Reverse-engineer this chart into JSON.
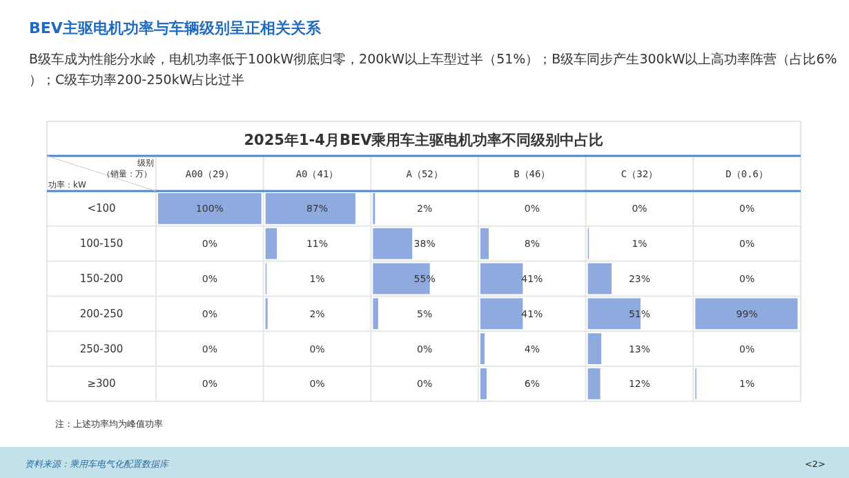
{
  "chart_data": {
    "type": "heatmap",
    "title": "BEV主驱电机功率与车辆级别呈正相关关系",
    "subtitle": "B级车成为性能分水岭，电机功率低于100kW彻底归零，200kW以上车型过半（51%）；B级车同步产生300kW以上高功率阵营（占比6%）；C级车功率200-250kW占比过半",
    "xlabel": "级别",
    "ylabel": "功率：kW",
    "color": "#8eaadf",
    "categories": [
      "A00（29）",
      "A0（41）",
      "A（52）",
      "B（46）",
      "C（32）",
      "D（0.6）"
    ],
    "y_categories": [
      "<100",
      "100-150",
      "150-200",
      "200-250",
      "250-300",
      "≥300"
    ],
    "cells": [
      [
        100,
        87,
        2,
        0,
        0,
        0
      ],
      [
        0,
        11,
        38,
        8,
        1,
        0
      ],
      [
        0,
        1,
        55,
        41,
        23,
        0
      ],
      [
        0,
        2,
        5,
        41,
        51,
        99
      ],
      [
        0,
        0,
        0,
        4,
        13,
        0
      ],
      [
        0,
        0,
        0,
        6,
        12,
        1
      ]
    ],
    "cell_labels": [
      [
        "100%",
        "87%",
        "2%",
        "0%",
        "0%",
        "0%"
      ],
      [
        "0%",
        "11%",
        "38%",
        "8%",
        "1%",
        "0%"
      ],
      [
        "0%",
        "1%",
        "55%",
        "41%",
        "23%",
        "0%"
      ],
      [
        "0%",
        "2%",
        "5%",
        "41%",
        "51%",
        "99%"
      ],
      [
        "0%",
        "0%",
        "0%",
        "4%",
        "13%",
        "0%"
      ],
      [
        "0%",
        "0%",
        "0%",
        "6%",
        "12%",
        "1%"
      ]
    ],
    "annotations": [
      "2025年1-4月BEV乘用车主驱电机功率不同级别中占比",
      "（销量：万）",
      "注：上述功率均为峰值功率",
      "资料来源：乘用车电气化配置数据库",
      "<2>"
    ]
  }
}
